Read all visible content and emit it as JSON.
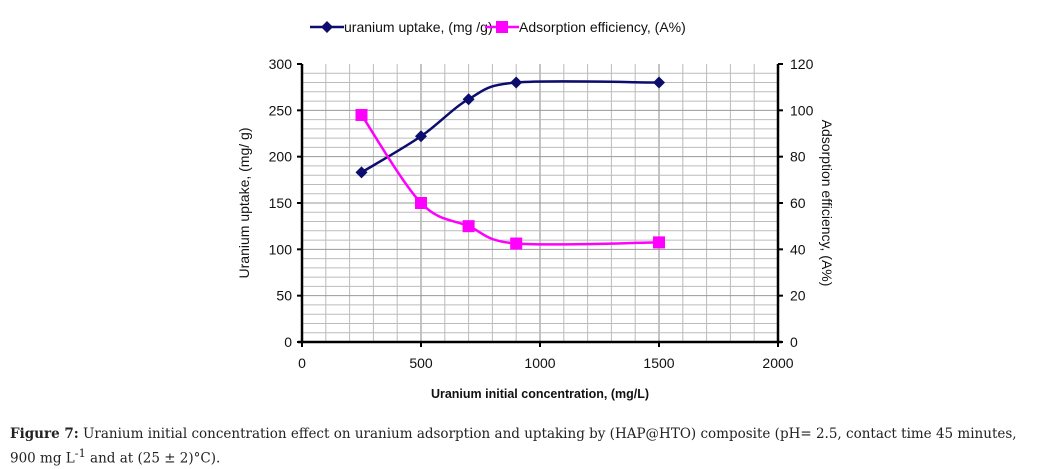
{
  "chart_data": {
    "type": "line",
    "x": [
      250,
      500,
      700,
      900,
      1500
    ],
    "series": [
      {
        "name": "uranium uptake, (mg /g)",
        "axis": "left",
        "values": [
          183,
          222,
          262,
          280,
          280
        ],
        "color": "#0d0d6e",
        "marker": "diamond"
      },
      {
        "name": "Adsorption efficiency, (A%)",
        "axis": "right",
        "values": [
          98,
          60,
          50,
          42.5,
          43
        ],
        "color": "#ff00ff",
        "marker": "square"
      }
    ],
    "xlabel": "Uranium initial concentration, (mg/L)",
    "ylabel": "Uranium uptake, (mg/ g)",
    "y2label": "Adsorption efficiency, (A%)",
    "xlim": [
      0,
      2000
    ],
    "ylim": [
      0,
      300
    ],
    "y2lim": [
      0,
      120
    ],
    "xticks": [
      "0",
      "500",
      "1000",
      "1500",
      "2000"
    ],
    "yticks": [
      "0",
      "50",
      "100",
      "150",
      "200",
      "250",
      "300"
    ],
    "y2ticks": [
      "0",
      "20",
      "40",
      "60",
      "80",
      "100",
      "120"
    ],
    "grid": true,
    "legend": "top"
  },
  "caption": {
    "label": "Figure 7:",
    "text1": " Uranium initial concentration effect on uranium adsorption and uptaking by (HAP@HTO) composite (pH= 2.5, contact time 45 minutes, 900 mg L",
    "sup": "-1",
    "text2": " and at (25 ± 2)°C)."
  }
}
